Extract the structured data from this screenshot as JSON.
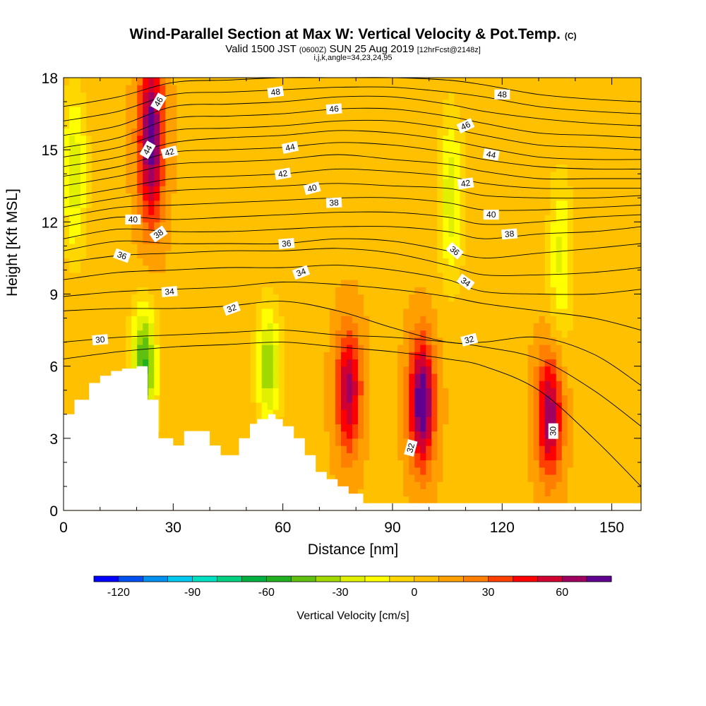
{
  "title": {
    "main": "Wind-Parallel Section at Max W: Vertical Velocity & Pot.Temp.",
    "main_suffix": "(C)",
    "valid_prefix": "Valid 1500 JST",
    "valid_zulu": "(0600Z)",
    "valid_date": "SUN 25 Aug 2019",
    "forecast": "[12hrFcst@2148z]",
    "params": "i,j,k,angle=34,23,24,95"
  },
  "chart_data": {
    "type": "heatmap",
    "xlabel": "Distance [nm]",
    "ylabel": "Height [Kft MSL]",
    "xlim": [
      0,
      158
    ],
    "ylim": [
      0,
      18
    ],
    "x_ticks": [
      0,
      30,
      60,
      90,
      120,
      150
    ],
    "y_ticks": [
      0,
      3,
      6,
      9,
      12,
      15,
      18
    ],
    "grid": false,
    "colorbar": {
      "label": "Vertical Velocity [cm/s]",
      "min": -130,
      "max": 80,
      "step": 10,
      "tick_values": [
        -120,
        -90,
        -60,
        -30,
        0,
        30,
        60
      ],
      "colors": [
        "#0000ff",
        "#0050f0",
        "#0090f0",
        "#00c8f0",
        "#00e0c0",
        "#00d080",
        "#00b040",
        "#20b020",
        "#60c010",
        "#a0d800",
        "#e0f000",
        "#ffff00",
        "#ffd700",
        "#ffc000",
        "#ffa000",
        "#ff8000",
        "#ff4000",
        "#ff0000",
        "#d00030",
        "#a00060",
        "#600090"
      ]
    },
    "velocity_cores": [
      {
        "x": 24,
        "z": 15.5,
        "w": 70
      },
      {
        "x": 78,
        "z": 5.0,
        "w": 55
      },
      {
        "x": 98,
        "z": 4.5,
        "w": 75
      },
      {
        "x": 133,
        "z": 4.0,
        "w": 60
      },
      {
        "x": 22,
        "z": 6.0,
        "w": -60
      },
      {
        "x": 56,
        "z": 6.0,
        "w": -45
      },
      {
        "x": 106,
        "z": 13.0,
        "w": -35
      },
      {
        "x": 3,
        "z": 14.0,
        "w": -35
      },
      {
        "x": 136,
        "z": 10.5,
        "w": -30
      }
    ],
    "terrain": {
      "x": [
        0,
        3,
        3,
        6,
        6,
        7,
        7,
        10,
        10,
        13,
        13,
        16,
        16,
        20,
        20,
        23,
        23,
        26,
        26,
        30,
        30,
        33,
        33,
        38,
        38,
        40,
        40,
        43,
        43,
        48,
        48,
        51,
        51,
        53,
        53,
        56,
        56,
        58,
        58,
        60,
        60,
        63,
        63,
        66,
        66,
        69,
        69,
        72,
        72,
        75,
        75,
        78,
        78,
        82,
        82,
        84,
        84,
        158
      ],
      "z": [
        4.0,
        4.0,
        4.6,
        4.6,
        4.6,
        4.6,
        5.3,
        5.3,
        5.6,
        5.6,
        5.8,
        5.8,
        5.9,
        5.9,
        6.0,
        6.0,
        4.6,
        4.6,
        3.0,
        3.0,
        2.7,
        2.7,
        3.3,
        3.3,
        3.3,
        3.3,
        2.7,
        2.7,
        2.3,
        2.3,
        3.0,
        3.0,
        3.6,
        3.6,
        3.8,
        3.8,
        4.0,
        4.0,
        3.8,
        3.8,
        3.5,
        3.5,
        3.0,
        3.0,
        2.3,
        2.3,
        1.6,
        1.6,
        1.3,
        1.3,
        1.0,
        1.0,
        0.7,
        0.7,
        0.3,
        0.3,
        0.3,
        0.3
      ]
    },
    "theta_contours": [
      {
        "level": 30,
        "z": [
          6.3,
          6.6,
          6.8,
          6.9,
          7.0,
          6.8,
          6.6,
          6.3,
          6.0,
          5.0,
          3.0,
          1.0
        ]
      },
      {
        "level": 31,
        "z": [
          7.0,
          7.2,
          7.3,
          7.4,
          7.5,
          7.3,
          7.2,
          7.0,
          6.8,
          6.3,
          5.0,
          3.5
        ]
      },
      {
        "level": 32,
        "z": [
          8.3,
          8.4,
          8.4,
          8.5,
          8.7,
          8.3,
          7.6,
          7.0,
          7.0,
          7.2,
          6.5,
          5.2
        ]
      },
      {
        "level": 33,
        "z": [
          8.9,
          9.1,
          9.2,
          9.3,
          9.5,
          9.4,
          9.2,
          8.9,
          8.6,
          8.3,
          8.0,
          7.5
        ]
      },
      {
        "level": 34,
        "z": [
          9.6,
          9.9,
          10.0,
          10.1,
          10.1,
          10.2,
          10.0,
          9.6,
          9.1,
          9.0,
          9.0,
          9.2
        ]
      },
      {
        "level": 35,
        "z": [
          10.3,
          10.6,
          10.7,
          10.8,
          10.8,
          10.9,
          10.7,
          10.2,
          9.8,
          9.8,
          9.9,
          10.1
        ]
      },
      {
        "level": 36,
        "z": [
          10.8,
          11.2,
          11.1,
          11.1,
          11.1,
          11.3,
          11.2,
          10.8,
          10.5,
          10.7,
          10.9,
          11.1
        ]
      },
      {
        "level": 37,
        "z": [
          11.3,
          11.7,
          11.6,
          11.6,
          11.7,
          11.8,
          11.8,
          11.6,
          11.3,
          11.5,
          11.6,
          11.8
        ]
      },
      {
        "level": 38,
        "z": [
          11.8,
          12.2,
          12.1,
          12.2,
          12.3,
          12.4,
          12.4,
          12.2,
          11.9,
          12.0,
          12.2,
          12.3
        ]
      },
      {
        "level": 39,
        "z": [
          12.2,
          12.6,
          12.7,
          12.8,
          12.9,
          13.0,
          13.0,
          12.8,
          12.5,
          12.5,
          12.6,
          12.7
        ]
      },
      {
        "level": 40,
        "z": [
          12.6,
          13.0,
          13.3,
          13.4,
          13.5,
          13.6,
          13.5,
          13.4,
          13.1,
          13.0,
          13.0,
          13.1
        ]
      },
      {
        "level": 41,
        "z": [
          13.0,
          13.4,
          13.8,
          13.9,
          14.0,
          14.2,
          14.1,
          13.9,
          13.6,
          13.4,
          13.4,
          13.4
        ]
      },
      {
        "level": 42,
        "z": [
          13.5,
          13.9,
          14.4,
          14.5,
          14.6,
          14.8,
          14.6,
          14.4,
          14.1,
          13.8,
          13.8,
          13.8
        ]
      },
      {
        "level": 43,
        "z": [
          13.9,
          14.3,
          14.9,
          15.0,
          15.1,
          15.3,
          15.2,
          14.9,
          14.6,
          14.3,
          14.2,
          14.2
        ]
      },
      {
        "level": 44,
        "z": [
          14.3,
          14.7,
          15.3,
          15.5,
          15.6,
          15.8,
          15.7,
          15.4,
          15.1,
          14.7,
          14.6,
          14.6
        ]
      },
      {
        "level": 45,
        "z": [
          14.7,
          15.1,
          15.8,
          15.9,
          16.0,
          16.2,
          16.2,
          15.9,
          15.6,
          15.2,
          15.1,
          15.0
        ]
      },
      {
        "level": 46,
        "z": [
          15.1,
          15.5,
          16.3,
          16.4,
          16.5,
          16.7,
          16.7,
          16.4,
          16.1,
          15.7,
          15.6,
          15.5
        ]
      },
      {
        "level": 47,
        "z": [
          15.6,
          16.0,
          16.8,
          16.9,
          17.0,
          17.2,
          17.2,
          16.9,
          16.6,
          16.3,
          16.1,
          16.0
        ]
      },
      {
        "level": 48,
        "z": [
          16.2,
          16.6,
          17.3,
          17.4,
          17.5,
          17.6,
          17.6,
          17.4,
          17.2,
          16.8,
          16.6,
          16.5
        ]
      },
      {
        "level": 49,
        "z": [
          16.8,
          17.2,
          17.8,
          17.9,
          18.0,
          18.0,
          18.0,
          17.9,
          17.7,
          17.3,
          17.1,
          17.0
        ]
      }
    ],
    "theta_contour_x": [
      0,
      15,
      30,
      45,
      60,
      75,
      90,
      105,
      115,
      130,
      145,
      158
    ],
    "contour_labels": [
      {
        "text": "48",
        "x": 58,
        "z": 17.4,
        "a": -8
      },
      {
        "text": "48",
        "x": 120,
        "z": 17.3,
        "a": 0
      },
      {
        "text": "46",
        "x": 26,
        "z": 17.0,
        "a": -60
      },
      {
        "text": "46",
        "x": 74,
        "z": 16.7,
        "a": -5
      },
      {
        "text": "46",
        "x": 110,
        "z": 16.0,
        "a": -25
      },
      {
        "text": "44",
        "x": 23,
        "z": 15.0,
        "a": -60
      },
      {
        "text": "44",
        "x": 62,
        "z": 15.1,
        "a": -12
      },
      {
        "text": "44",
        "x": 117,
        "z": 14.8,
        "a": 10
      },
      {
        "text": "42",
        "x": 29,
        "z": 14.9,
        "a": -15
      },
      {
        "text": "42",
        "x": 60,
        "z": 14.0,
        "a": -10
      },
      {
        "text": "42",
        "x": 110,
        "z": 13.6,
        "a": -8
      },
      {
        "text": "40",
        "x": 68,
        "z": 13.4,
        "a": -15
      },
      {
        "text": "40",
        "x": 19,
        "z": 12.1,
        "a": 0
      },
      {
        "text": "40",
        "x": 117,
        "z": 12.3,
        "a": 0
      },
      {
        "text": "38",
        "x": 74,
        "z": 12.8,
        "a": -3
      },
      {
        "text": "38",
        "x": 26,
        "z": 11.5,
        "a": -35
      },
      {
        "text": "38",
        "x": 122,
        "z": 11.5,
        "a": -5
      },
      {
        "text": "36",
        "x": 16,
        "z": 10.6,
        "a": 20
      },
      {
        "text": "36",
        "x": 61,
        "z": 11.1,
        "a": -5
      },
      {
        "text": "36",
        "x": 107,
        "z": 10.8,
        "a": 40
      },
      {
        "text": "34",
        "x": 29,
        "z": 9.1,
        "a": -5
      },
      {
        "text": "34",
        "x": 65,
        "z": 9.9,
        "a": -20
      },
      {
        "text": "34",
        "x": 110,
        "z": 9.5,
        "a": 35
      },
      {
        "text": "32",
        "x": 46,
        "z": 8.4,
        "a": -20
      },
      {
        "text": "32",
        "x": 111,
        "z": 7.1,
        "a": -15
      },
      {
        "text": "32",
        "x": 95,
        "z": 2.6,
        "a": -75
      },
      {
        "text": "30",
        "x": 10,
        "z": 7.1,
        "a": -5
      },
      {
        "text": "30",
        "x": 134,
        "z": 3.3,
        "a": -90
      }
    ]
  }
}
